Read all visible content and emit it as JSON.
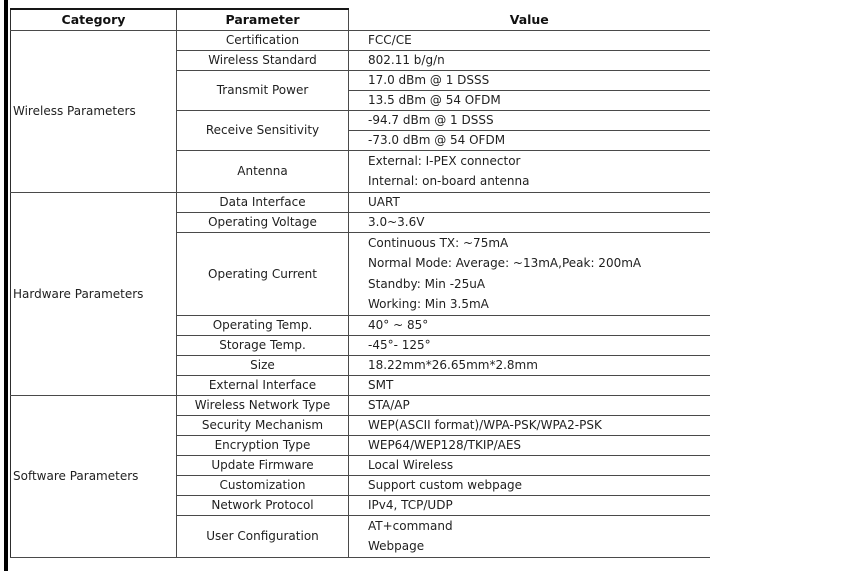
{
  "page": {
    "background": "#ffffff",
    "edge_bar_color": "#000000",
    "border_color": "#4a4a4a",
    "text_color": "#1f1f1f"
  },
  "table": {
    "headers": {
      "category": "Category",
      "parameter": "Parameter",
      "value": "Value"
    },
    "sections": [
      {
        "category": "Wireless Parameters",
        "rows": [
          {
            "parameter": "Certification",
            "value": "FCC/CE"
          },
          {
            "parameter": "Wireless Standard",
            "value": "802.11 b/g/n"
          },
          {
            "parameter": "Transmit Power",
            "value": "17.0 dBm @ 1 DSSS"
          },
          {
            "value": "13.5 dBm @ 54 OFDM"
          },
          {
            "parameter": "Receive Sensitivity",
            "value": "-94.7 dBm @ 1 DSSS"
          },
          {
            "value": "-73.0 dBm @ 54 OFDM"
          },
          {
            "parameter": "Antenna",
            "lines": [
              "External: I-PEX connector",
              "Internal: on-board antenna"
            ]
          }
        ]
      },
      {
        "category": "Hardware Parameters",
        "rows": [
          {
            "parameter": "Data Interface",
            "value": "UART"
          },
          {
            "parameter": "Operating Voltage",
            "value": "3.0~3.6V"
          },
          {
            "parameter": "Operating Current",
            "lines": [
              "Continuous TX: ~75mA",
              "Normal Mode: Average: ~13mA,Peak: 200mA",
              "Standby: Min -25uA",
              "Working: Min 3.5mA"
            ]
          },
          {
            "parameter": "Operating Temp.",
            "value": "40° ~ 85°"
          },
          {
            "parameter": "Storage Temp.",
            "value": "-45°- 125°"
          },
          {
            "parameter": "Size",
            "value": "18.22mm*26.65mm*2.8mm"
          },
          {
            "parameter": "External Interface",
            "value": "SMT"
          }
        ]
      },
      {
        "category": "Software Parameters",
        "rows": [
          {
            "parameter": "Wireless Network Type",
            "value": "STA/AP"
          },
          {
            "parameter": "Security Mechanism",
            "value": "WEP(ASCII format)/WPA-PSK/WPA2-PSK"
          },
          {
            "parameter": "Encryption Type",
            "value": "WEP64/WEP128/TKIP/AES"
          },
          {
            "parameter": "Update Firmware",
            "value": "Local Wireless"
          },
          {
            "parameter": "Customization",
            "value": "Support custom webpage"
          },
          {
            "parameter": "Network Protocol",
            "value": "IPv4, TCP/UDP"
          },
          {
            "parameter": "User Configuration",
            "lines": [
              "AT+command",
              "Webpage"
            ]
          }
        ]
      }
    ]
  }
}
